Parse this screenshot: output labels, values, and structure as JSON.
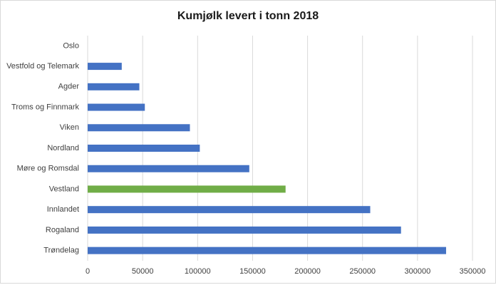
{
  "chart_data": {
    "type": "bar",
    "orientation": "horizontal",
    "title": "Kumjølk levert i tonn 2018",
    "categories": [
      "Oslo",
      "Vestfold og Telemark",
      "Agder",
      "Troms og Finnmark",
      "Viken",
      "Nordland",
      "Møre og Romsdal",
      "Vestland",
      "Innlandet",
      "Rogaland",
      "Trøndelag"
    ],
    "values": [
      0,
      31000,
      47000,
      52000,
      93000,
      102000,
      147000,
      180000,
      257000,
      285000,
      326000
    ],
    "colors": [
      "#4472c4",
      "#4472c4",
      "#4472c4",
      "#4472c4",
      "#4472c4",
      "#4472c4",
      "#4472c4",
      "#70ad47",
      "#4472c4",
      "#4472c4",
      "#4472c4"
    ],
    "xlim": [
      0,
      350000
    ],
    "xticks": [
      0,
      50000,
      100000,
      150000,
      200000,
      250000,
      300000,
      350000
    ],
    "grid": true
  }
}
